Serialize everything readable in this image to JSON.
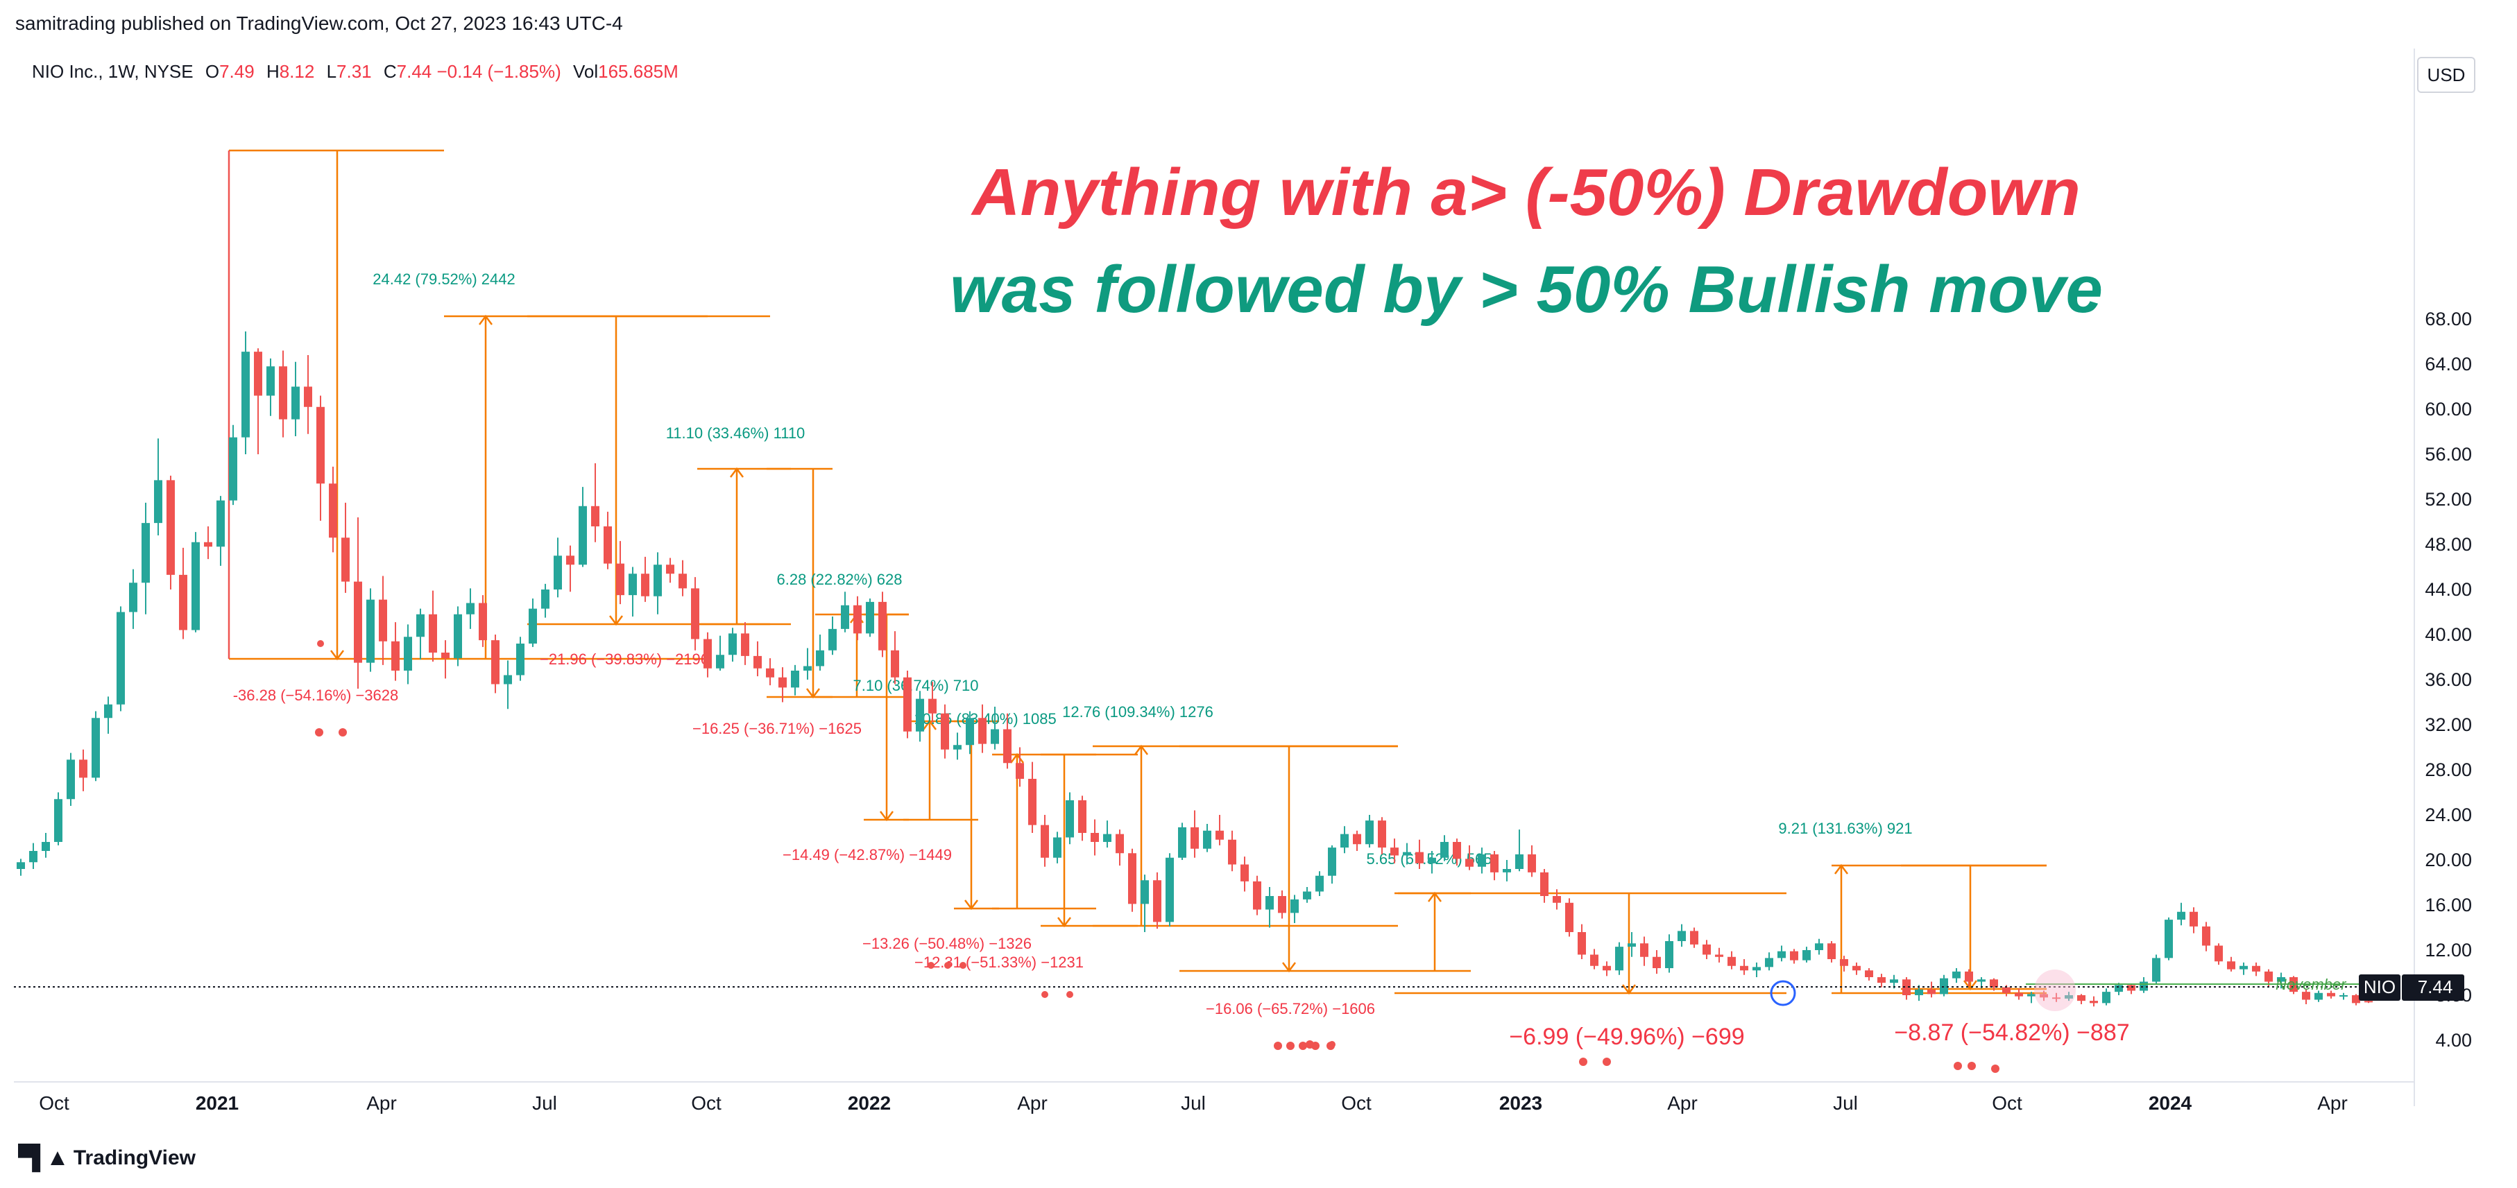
{
  "header": {
    "published": "samitrading published on TradingView.com, Oct 27, 2023 16:43 UTC-4"
  },
  "legend": {
    "symbol": "NIO Inc., 1W, NYSE",
    "o_label": "O",
    "o_value": "7.49",
    "h_label": "H",
    "h_value": "8.12",
    "l_label": "L",
    "l_value": "7.31",
    "c_label": "C",
    "c_value": "7.44",
    "change": "−0.14 (−1.85%)",
    "vol_label": "Vol",
    "vol_value": "165.685M"
  },
  "currency_button": "USD",
  "footer": {
    "brand": "TradingView"
  },
  "colors": {
    "up": "#26a69a",
    "down": "#ef5350",
    "measure": "#f57c00",
    "headline_red": "#ef3c4a",
    "headline_green": "#0f9b7f"
  },
  "chart_data": {
    "type": "candlestick",
    "symbol": "NIO",
    "last_price_label": "7.44",
    "price_line_note": "November",
    "ylim": [
      0,
      72
    ],
    "y_ticks": [
      "4.00",
      "8.00",
      "12.00",
      "16.00",
      "20.00",
      "24.00",
      "28.00",
      "32.00",
      "36.00",
      "40.00",
      "44.00",
      "48.00",
      "52.00",
      "56.00",
      "60.00",
      "64.00",
      "68.00"
    ],
    "x_ticks": [
      {
        "label": "Oct",
        "bold": false
      },
      {
        "label": "2021",
        "bold": true
      },
      {
        "label": "Apr",
        "bold": false
      },
      {
        "label": "Jul",
        "bold": false
      },
      {
        "label": "Oct",
        "bold": false
      },
      {
        "label": "2022",
        "bold": true
      },
      {
        "label": "Apr",
        "bold": false
      },
      {
        "label": "Jul",
        "bold": false
      },
      {
        "label": "Oct",
        "bold": false
      },
      {
        "label": "2023",
        "bold": true
      },
      {
        "label": "Apr",
        "bold": false
      },
      {
        "label": "Jul",
        "bold": false
      },
      {
        "label": "Oct",
        "bold": false
      },
      {
        "label": "2024",
        "bold": true
      },
      {
        "label": "Apr",
        "bold": false
      }
    ],
    "headline": {
      "line1": "Anything with a> (-50%) Drawdown",
      "line2": "was followed by > 50% Bullish move"
    },
    "candles": [
      [
        19.2,
        20.1,
        18.6,
        19.8
      ],
      [
        19.8,
        21.5,
        19.2,
        20.8
      ],
      [
        20.8,
        22.4,
        20.2,
        21.6
      ],
      [
        21.6,
        26.0,
        21.3,
        25.4
      ],
      [
        25.4,
        29.5,
        24.8,
        28.9
      ],
      [
        28.9,
        29.8,
        26.1,
        27.3
      ],
      [
        27.3,
        33.2,
        27.0,
        32.6
      ],
      [
        32.6,
        34.5,
        31.2,
        33.8
      ],
      [
        33.8,
        42.5,
        33.2,
        42.0
      ],
      [
        42.0,
        45.8,
        40.5,
        44.6
      ],
      [
        44.6,
        51.7,
        41.8,
        49.9
      ],
      [
        49.9,
        57.4,
        48.8,
        53.7
      ],
      [
        53.7,
        54.1,
        44.0,
        45.3
      ],
      [
        45.3,
        47.7,
        39.6,
        40.4
      ],
      [
        40.4,
        49.1,
        40.2,
        48.2
      ],
      [
        48.2,
        49.6,
        46.7,
        47.8
      ],
      [
        47.8,
        52.3,
        46.1,
        51.9
      ],
      [
        51.9,
        58.6,
        51.5,
        57.5
      ],
      [
        57.5,
        66.9,
        56.0,
        65.1
      ],
      [
        65.1,
        65.4,
        56.0,
        61.2
      ],
      [
        61.2,
        64.5,
        59.4,
        63.8
      ],
      [
        63.8,
        65.2,
        57.5,
        59.1
      ],
      [
        59.1,
        64.2,
        57.6,
        62.0
      ],
      [
        62.0,
        64.8,
        57.8,
        60.2
      ],
      [
        60.2,
        61.2,
        50.1,
        53.4
      ],
      [
        53.4,
        54.9,
        47.3,
        48.6
      ],
      [
        48.6,
        51.7,
        43.7,
        44.7
      ],
      [
        44.7,
        50.4,
        35.2,
        37.5
      ],
      [
        37.5,
        44.1,
        36.7,
        43.1
      ],
      [
        43.1,
        45.2,
        37.3,
        39.4
      ],
      [
        39.4,
        41.1,
        35.9,
        36.8
      ],
      [
        36.8,
        40.9,
        35.6,
        39.8
      ],
      [
        39.8,
        42.3,
        37.8,
        41.8
      ],
      [
        41.8,
        43.9,
        37.6,
        38.4
      ],
      [
        38.4,
        39.5,
        36.1,
        37.9
      ],
      [
        37.9,
        42.5,
        37.2,
        41.8
      ],
      [
        41.8,
        44.1,
        40.5,
        42.8
      ],
      [
        42.8,
        43.5,
        38.9,
        39.5
      ],
      [
        39.5,
        40.0,
        34.8,
        35.6
      ],
      [
        35.6,
        37.7,
        33.4,
        36.4
      ],
      [
        36.4,
        39.8,
        35.9,
        39.2
      ],
      [
        39.2,
        43.2,
        38.9,
        42.3
      ],
      [
        42.3,
        44.5,
        41.5,
        44.0
      ],
      [
        44.0,
        48.6,
        43.3,
        47.0
      ],
      [
        47.0,
        47.9,
        43.8,
        46.2
      ],
      [
        46.2,
        53.1,
        46.0,
        51.4
      ],
      [
        51.4,
        55.2,
        48.2,
        49.6
      ],
      [
        49.6,
        50.9,
        45.8,
        46.3
      ],
      [
        46.3,
        48.3,
        42.7,
        43.5
      ],
      [
        43.5,
        46.0,
        41.6,
        45.4
      ],
      [
        45.4,
        46.9,
        42.9,
        43.4
      ],
      [
        43.4,
        47.3,
        41.8,
        46.2
      ],
      [
        46.2,
        46.8,
        44.6,
        45.4
      ],
      [
        45.4,
        46.6,
        43.4,
        44.1
      ],
      [
        44.1,
        45.1,
        38.6,
        39.6
      ],
      [
        39.6,
        40.2,
        36.2,
        37.0
      ],
      [
        37.0,
        39.9,
        36.8,
        38.2
      ],
      [
        38.2,
        40.6,
        37.6,
        40.1
      ],
      [
        40.1,
        41.1,
        37.3,
        38.1
      ],
      [
        38.1,
        39.4,
        36.3,
        37.0
      ],
      [
        37.0,
        37.9,
        35.5,
        36.2
      ],
      [
        36.2,
        37.1,
        34.0,
        35.3
      ],
      [
        35.3,
        37.3,
        34.6,
        36.8
      ],
      [
        36.8,
        38.8,
        36.0,
        37.2
      ],
      [
        37.2,
        40.0,
        36.8,
        38.6
      ],
      [
        38.6,
        41.6,
        38.2,
        40.5
      ],
      [
        40.5,
        43.8,
        40.2,
        42.6
      ],
      [
        42.6,
        43.4,
        39.5,
        40.1
      ],
      [
        40.1,
        43.2,
        39.8,
        42.9
      ],
      [
        42.9,
        43.8,
        38.0,
        38.6
      ],
      [
        38.6,
        40.3,
        35.6,
        36.2
      ],
      [
        36.2,
        36.8,
        30.8,
        31.4
      ],
      [
        31.4,
        35.0,
        30.5,
        34.3
      ],
      [
        34.3,
        35.8,
        32.2,
        33.0
      ],
      [
        33.0,
        33.8,
        29.0,
        29.8
      ],
      [
        29.8,
        31.3,
        28.9,
        30.2
      ],
      [
        30.2,
        33.2,
        29.4,
        32.6
      ],
      [
        32.6,
        33.8,
        29.5,
        30.3
      ],
      [
        30.3,
        33.6,
        29.8,
        31.6
      ],
      [
        31.6,
        33.0,
        28.1,
        28.6
      ],
      [
        28.6,
        30.0,
        26.5,
        27.2
      ],
      [
        27.2,
        28.7,
        22.4,
        23.1
      ],
      [
        23.1,
        24.0,
        19.4,
        20.2
      ],
      [
        20.2,
        22.5,
        19.7,
        22.0
      ],
      [
        22.0,
        26.0,
        21.4,
        25.3
      ],
      [
        25.3,
        25.7,
        21.7,
        22.4
      ],
      [
        22.4,
        23.6,
        20.4,
        21.6
      ],
      [
        21.6,
        23.5,
        21.1,
        22.3
      ],
      [
        22.3,
        22.7,
        19.5,
        20.6
      ],
      [
        20.6,
        21.0,
        15.4,
        16.1
      ],
      [
        16.1,
        18.7,
        13.6,
        18.2
      ],
      [
        18.2,
        18.9,
        13.9,
        14.5
      ],
      [
        14.5,
        20.6,
        14.1,
        20.2
      ],
      [
        20.2,
        23.3,
        20.0,
        22.9
      ],
      [
        22.9,
        24.4,
        20.2,
        21.0
      ],
      [
        21.0,
        23.2,
        20.7,
        22.6
      ],
      [
        22.6,
        24.0,
        21.3,
        21.8
      ],
      [
        21.8,
        22.6,
        19.0,
        19.6
      ],
      [
        19.6,
        20.3,
        17.2,
        18.1
      ],
      [
        18.1,
        18.6,
        15.1,
        15.6
      ],
      [
        15.6,
        17.6,
        14.0,
        16.8
      ],
      [
        16.8,
        17.3,
        14.8,
        15.3
      ],
      [
        15.3,
        16.9,
        14.4,
        16.5
      ],
      [
        16.5,
        17.6,
        16.2,
        17.2
      ],
      [
        17.2,
        19.0,
        16.8,
        18.6
      ],
      [
        18.6,
        21.3,
        17.9,
        21.1
      ],
      [
        21.1,
        23.0,
        20.6,
        22.3
      ],
      [
        22.3,
        22.6,
        20.8,
        21.4
      ],
      [
        21.4,
        24.0,
        21.1,
        23.5
      ],
      [
        23.5,
        23.8,
        20.5,
        21.1
      ],
      [
        21.1,
        21.9,
        19.7,
        20.4
      ],
      [
        20.4,
        21.5,
        19.6,
        20.7
      ],
      [
        20.7,
        21.8,
        19.2,
        19.7
      ],
      [
        19.7,
        20.8,
        18.8,
        20.2
      ],
      [
        20.2,
        22.2,
        19.9,
        21.6
      ],
      [
        21.6,
        21.9,
        19.5,
        20.1
      ],
      [
        20.1,
        21.3,
        19.1,
        19.4
      ],
      [
        19.4,
        21.1,
        18.8,
        20.5
      ],
      [
        20.5,
        20.8,
        18.2,
        18.9
      ],
      [
        18.9,
        20.0,
        18.1,
        19.2
      ],
      [
        19.2,
        22.7,
        19.0,
        20.5
      ],
      [
        20.5,
        21.3,
        18.5,
        18.9
      ],
      [
        18.9,
        19.2,
        16.2,
        16.8
      ],
      [
        16.8,
        17.4,
        15.6,
        16.2
      ],
      [
        16.2,
        16.6,
        13.2,
        13.6
      ],
      [
        13.6,
        14.3,
        11.2,
        11.6
      ],
      [
        11.6,
        12.1,
        10.3,
        10.6
      ],
      [
        10.6,
        11.0,
        9.7,
        10.2
      ],
      [
        10.2,
        12.7,
        9.8,
        12.3
      ],
      [
        12.3,
        13.6,
        11.4,
        12.6
      ],
      [
        12.6,
        13.2,
        10.6,
        11.4
      ],
      [
        11.4,
        12.0,
        9.9,
        10.4
      ],
      [
        10.4,
        13.4,
        10.0,
        12.8
      ],
      [
        12.8,
        14.3,
        12.3,
        13.7
      ],
      [
        13.7,
        14.0,
        12.2,
        12.5
      ],
      [
        12.5,
        12.9,
        11.2,
        11.6
      ],
      [
        11.6,
        12.2,
        10.9,
        11.4
      ],
      [
        11.4,
        11.9,
        10.3,
        10.6
      ],
      [
        10.6,
        11.2,
        9.8,
        10.2
      ],
      [
        10.2,
        10.9,
        9.6,
        10.5
      ],
      [
        10.5,
        11.8,
        10.2,
        11.3
      ],
      [
        11.3,
        12.4,
        11.0,
        11.9
      ],
      [
        11.9,
        12.1,
        10.8,
        11.1
      ],
      [
        11.1,
        12.3,
        10.9,
        12.0
      ],
      [
        12.0,
        13.0,
        11.6,
        12.6
      ],
      [
        12.6,
        12.8,
        10.9,
        11.2
      ],
      [
        11.2,
        11.5,
        10.1,
        10.6
      ],
      [
        10.6,
        10.9,
        9.8,
        10.2
      ],
      [
        10.2,
        10.4,
        9.3,
        9.6
      ],
      [
        9.6,
        9.9,
        8.7,
        9.1
      ],
      [
        9.1,
        9.8,
        8.6,
        9.4
      ],
      [
        9.4,
        9.6,
        7.6,
        8.0
      ],
      [
        8.0,
        8.9,
        7.5,
        8.5
      ],
      [
        8.5,
        9.2,
        7.8,
        8.1
      ],
      [
        8.1,
        9.8,
        7.9,
        9.5
      ],
      [
        9.5,
        10.4,
        9.1,
        10.1
      ],
      [
        10.1,
        10.3,
        8.8,
        9.2
      ],
      [
        9.2,
        9.6,
        8.6,
        9.4
      ],
      [
        9.4,
        9.5,
        8.4,
        8.7
      ],
      [
        8.7,
        8.9,
        7.9,
        8.2
      ],
      [
        8.2,
        8.6,
        7.6,
        7.9
      ],
      [
        7.9,
        8.3,
        7.3,
        8.1
      ],
      [
        8.1,
        8.4,
        7.5,
        7.8
      ],
      [
        7.8,
        8.2,
        7.4,
        7.7
      ],
      [
        7.7,
        8.3,
        7.5,
        8.0
      ],
      [
        8.0,
        8.1,
        7.2,
        7.5
      ],
      [
        7.5,
        7.9,
        7.0,
        7.3
      ],
      [
        7.3,
        8.6,
        7.1,
        8.3
      ],
      [
        8.3,
        9.1,
        8.0,
        8.9
      ],
      [
        8.9,
        9.0,
        8.1,
        8.4
      ],
      [
        8.4,
        9.6,
        8.2,
        9.2
      ],
      [
        9.2,
        11.6,
        9.0,
        11.3
      ],
      [
        11.3,
        14.9,
        11.1,
        14.7
      ],
      [
        14.7,
        16.2,
        14.2,
        15.4
      ],
      [
        15.4,
        15.8,
        13.5,
        14.1
      ],
      [
        14.1,
        14.5,
        11.9,
        12.4
      ],
      [
        12.4,
        12.6,
        10.7,
        11.0
      ],
      [
        11.0,
        11.4,
        10.1,
        10.3
      ],
      [
        10.3,
        10.9,
        9.8,
        10.6
      ],
      [
        10.6,
        10.9,
        9.7,
        10.1
      ],
      [
        10.1,
        10.3,
        8.8,
        9.2
      ],
      [
        9.2,
        10.0,
        8.6,
        9.6
      ],
      [
        9.6,
        9.7,
        8.1,
        8.3
      ],
      [
        8.3,
        8.5,
        7.2,
        7.6
      ],
      [
        7.6,
        8.4,
        7.4,
        8.2
      ],
      [
        8.2,
        8.4,
        7.7,
        7.9
      ],
      [
        7.9,
        8.2,
        7.6,
        8.0
      ],
      [
        8.0,
        8.1,
        7.1,
        7.3
      ],
      [
        7.49,
        8.12,
        7.31,
        7.44
      ]
    ],
    "measurements": [
      {
        "label": "-36.28 (−54.16%) −3628",
        "color": "red",
        "size": "small"
      },
      {
        "label": "24.42 (79.52%) 2442",
        "color": "green",
        "size": "small"
      },
      {
        "label": "−21.96 (−39.83%) −2196",
        "color": "red",
        "size": "small"
      },
      {
        "label": "11.10 (33.46%) 1110",
        "color": "green",
        "size": "small"
      },
      {
        "label": "6.28 (22.82%) 628",
        "color": "green",
        "size": "small"
      },
      {
        "label": "−16.25 (−36.71%) −1625",
        "color": "red",
        "size": "small"
      },
      {
        "label": "7.10 (36.74%) 710",
        "color": "green",
        "size": "small"
      },
      {
        "label": "10.85 (83.40%) 1085",
        "color": "green",
        "size": "small"
      },
      {
        "label": "12.76 (109.34%) 1276",
        "color": "green",
        "size": "small"
      },
      {
        "label": "−14.49 (−42.87%) −1449",
        "color": "red",
        "size": "small"
      },
      {
        "label": "5.65 (67.52%) 565",
        "color": "green",
        "size": "small"
      },
      {
        "label": "−13.26 (−50.48%) −1326",
        "color": "red",
        "size": "small"
      },
      {
        "label": "−12.31 (−51.33%) −1231",
        "color": "red",
        "size": "small"
      },
      {
        "label": "−16.06 (−65.72%) −1606",
        "color": "red",
        "size": "small"
      },
      {
        "label": "9.21 (131.63%) 921",
        "color": "green",
        "size": "small"
      },
      {
        "label": "−6.99 (−49.96%) −699",
        "color": "red",
        "size": "large"
      },
      {
        "label": "−8.87 (−54.82%) −887",
        "color": "red",
        "size": "large"
      }
    ]
  }
}
